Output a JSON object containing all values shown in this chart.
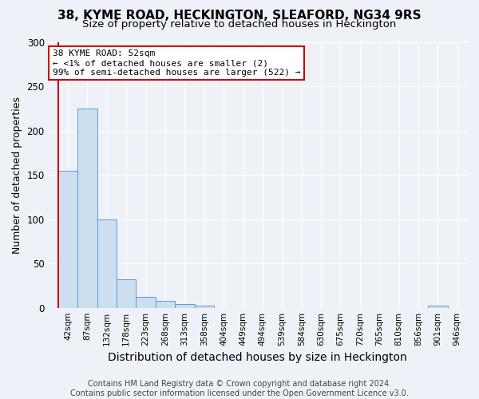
{
  "title": "38, KYME ROAD, HECKINGTON, SLEAFORD, NG34 9RS",
  "subtitle": "Size of property relative to detached houses in Heckington",
  "xlabel": "Distribution of detached houses by size in Heckington",
  "ylabel": "Number of detached properties",
  "bin_labels": [
    "42sqm",
    "87sqm",
    "132sqm",
    "178sqm",
    "223sqm",
    "268sqm",
    "313sqm",
    "358sqm",
    "404sqm",
    "449sqm",
    "494sqm",
    "539sqm",
    "584sqm",
    "630sqm",
    "675sqm",
    "720sqm",
    "765sqm",
    "810sqm",
    "856sqm",
    "901sqm",
    "946sqm"
  ],
  "bar_heights": [
    155,
    225,
    100,
    32,
    12,
    8,
    4,
    2,
    0,
    0,
    0,
    0,
    0,
    0,
    0,
    0,
    0,
    0,
    0,
    2,
    0
  ],
  "bar_color": "#ccdff0",
  "bar_edge_color": "#5b9bd5",
  "ylim": [
    0,
    300
  ],
  "property_line_color": "#cc0000",
  "annotation_line1": "38 KYME ROAD: 52sqm",
  "annotation_line2": "← <1% of detached houses are smaller (2)",
  "annotation_line3": "99% of semi-detached houses are larger (522) →",
  "annotation_box_color": "#cc0000",
  "footer_line1": "Contains HM Land Registry data © Crown copyright and database right 2024.",
  "footer_line2": "Contains public sector information licensed under the Open Government Licence v3.0.",
  "background_color": "#eef2f8",
  "grid_color": "#ffffff",
  "title_fontsize": 11,
  "subtitle_fontsize": 9.5,
  "axis_label_fontsize": 9,
  "tick_fontsize": 7.5,
  "footer_fontsize": 7
}
